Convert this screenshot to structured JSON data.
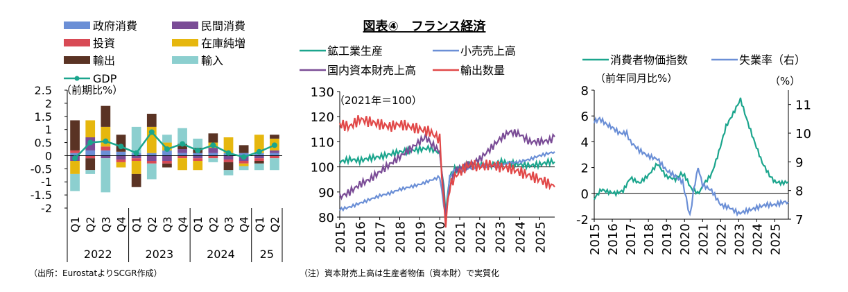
{
  "title": "図表④　フランス経済",
  "source_note": "（出所：EurostatよりSCGR作成）",
  "note": "（注）資本財売上高は生産者物価（資本財）で実質化",
  "chart_data": [
    {
      "type": "bar",
      "stacked": true,
      "unit_label": "（前期比%）",
      "categories": [
        "Q1",
        "Q2",
        "Q3",
        "Q4",
        "Q1",
        "Q2",
        "Q3",
        "Q4",
        "Q1",
        "Q2",
        "Q3",
        "Q4",
        "Q1",
        "Q2"
      ],
      "year_groups": [
        {
          "label": "2022",
          "count": 4
        },
        {
          "label": "2023",
          "count": 4
        },
        {
          "label": "2024",
          "count": 4
        },
        {
          "label": "25",
          "count": 2
        }
      ],
      "ylim": [
        -2,
        2.5
      ],
      "yticks": [
        "2.5",
        "2",
        "1.5",
        "1",
        "0.5",
        "0",
        "-0.5",
        "-1",
        "-1.5",
        "-2"
      ],
      "series": [
        {
          "name": "政府消費",
          "color": "#6b8fd6",
          "values": [
            0.1,
            0.2,
            0.2,
            0.15,
            0.1,
            0.1,
            0.2,
            0.1,
            0.1,
            0.1,
            0.1,
            0.1,
            0.1,
            0.1
          ]
        },
        {
          "name": "民間消費",
          "color": "#7a4c96",
          "values": [
            -0.2,
            0.5,
            -0.1,
            -0.15,
            -0.1,
            -0.2,
            -0.2,
            0.15,
            -0.1,
            0.2,
            -0.15,
            -0.2,
            -0.1,
            0.1
          ]
        },
        {
          "name": "投資",
          "color": "#d84a55",
          "values": [
            0.1,
            -0.1,
            0.15,
            -0.1,
            -0.1,
            -0.1,
            -0.1,
            -0.1,
            -0.1,
            -0.1,
            -0.1,
            -0.1,
            -0.1,
            -0.1
          ]
        },
        {
          "name": "在庫純増",
          "color": "#e6b70e",
          "values": [
            -0.5,
            0.65,
            0.75,
            -0.2,
            -0.5,
            1.0,
            0.3,
            -0.45,
            -0.35,
            0.2,
            0.6,
            -0.1,
            0.7,
            0.45
          ]
        },
        {
          "name": "輸出",
          "color": "#5a3324",
          "values": [
            1.15,
            -0.45,
            0.8,
            0.65,
            -0.5,
            0.5,
            -0.15,
            0.2,
            0.2,
            0.35,
            -0.3,
            0.3,
            -0.1,
            0.15
          ]
        },
        {
          "name": "輸入",
          "color": "#8ccfcf",
          "values": [
            -0.65,
            -0.15,
            -1.3,
            0.0,
            1.0,
            -0.6,
            0.3,
            0.6,
            0.35,
            -0.15,
            -0.2,
            -0.15,
            -0.25,
            -0.45
          ]
        }
      ],
      "gdp": {
        "name": "GDP",
        "color": "#1ba58d",
        "values": [
          -0.1,
          0.5,
          0.55,
          0.35,
          0.1,
          0.9,
          0.25,
          0.45,
          0.2,
          0.4,
          0.1,
          -0.05,
          0.15,
          0.4
        ]
      }
    },
    {
      "type": "line",
      "unit_label": "（2021年＝100）",
      "xlim": [
        2015,
        2025.75
      ],
      "xticks": [
        "2015",
        "2016",
        "2017",
        "2018",
        "2019",
        "2020",
        "2021",
        "2022",
        "2023",
        "2024",
        "2025"
      ],
      "ylim": [
        80,
        130
      ],
      "yticks": [
        "130",
        "120",
        "110",
        "100",
        "90",
        "80"
      ],
      "series": [
        {
          "name": "鉱工業生産",
          "color": "#1ba58d",
          "points": [
            [
              2015,
              102
            ],
            [
              2015.5,
              103
            ],
            [
              2016,
              102.5
            ],
            [
              2016.5,
              103.5
            ],
            [
              2017,
              104
            ],
            [
              2017.5,
              105
            ],
            [
              2018,
              106
            ],
            [
              2018.5,
              106.5
            ],
            [
              2019,
              107
            ],
            [
              2019.5,
              107.5
            ],
            [
              2020,
              105.5
            ],
            [
              2020.2,
              92
            ],
            [
              2020.3,
              82
            ],
            [
              2020.5,
              96
            ],
            [
              2020.75,
              99
            ],
            [
              2021,
              99.5
            ],
            [
              2021.5,
              101
            ],
            [
              2022,
              101
            ],
            [
              2022.5,
              100.5
            ],
            [
              2023,
              102
            ],
            [
              2023.5,
              101.5
            ],
            [
              2024,
              101
            ],
            [
              2024.5,
              100.5
            ],
            [
              2025,
              101
            ],
            [
              2025.5,
              102
            ],
            [
              2025.75,
              102
            ]
          ]
        },
        {
          "name": "小売売上高",
          "color": "#6b8fd6",
          "points": [
            [
              2015,
              83
            ],
            [
              2015.5,
              84
            ],
            [
              2016,
              85.5
            ],
            [
              2016.5,
              87
            ],
            [
              2017,
              88.5
            ],
            [
              2017.5,
              89.5
            ],
            [
              2018,
              91
            ],
            [
              2018.5,
              92
            ],
            [
              2019,
              93
            ],
            [
              2019.5,
              94.5
            ],
            [
              2020,
              96
            ],
            [
              2020.2,
              85
            ],
            [
              2020.3,
              80
            ],
            [
              2020.5,
              96
            ],
            [
              2020.75,
              99
            ],
            [
              2021,
              98.5
            ],
            [
              2021.5,
              99.5
            ],
            [
              2022,
              100.5
            ],
            [
              2022.5,
              100.5
            ],
            [
              2023,
              100.5
            ],
            [
              2023.5,
              101.5
            ],
            [
              2024,
              102
            ],
            [
              2024.5,
              103
            ],
            [
              2025,
              104.5
            ],
            [
              2025.5,
              105.5
            ],
            [
              2025.75,
              106
            ]
          ]
        },
        {
          "name": "国内資本財売上高",
          "color": "#7a4c96",
          "points": [
            [
              2015,
              88
            ],
            [
              2015.5,
              90
            ],
            [
              2016,
              93
            ],
            [
              2016.5,
              95
            ],
            [
              2017,
              98
            ],
            [
              2017.5,
              101
            ],
            [
              2018,
              104
            ],
            [
              2018.5,
              107
            ],
            [
              2019,
              110
            ],
            [
              2019.3,
              112
            ],
            [
              2019.6,
              109
            ],
            [
              2020,
              106
            ],
            [
              2020.2,
              90
            ],
            [
              2020.3,
              80
            ],
            [
              2020.5,
              92
            ],
            [
              2020.75,
              98
            ],
            [
              2021,
              99.5
            ],
            [
              2021.5,
              101
            ],
            [
              2022,
              103
            ],
            [
              2022.5,
              107
            ],
            [
              2023,
              111
            ],
            [
              2023.5,
              114
            ],
            [
              2024,
              113
            ],
            [
              2024.5,
              110
            ],
            [
              2025,
              110
            ],
            [
              2025.5,
              110.5
            ],
            [
              2025.75,
              112
            ]
          ]
        },
        {
          "name": "輸出数量",
          "color": "#e14848",
          "points": [
            [
              2015,
              117
            ],
            [
              2015.5,
              116
            ],
            [
              2016,
              119
            ],
            [
              2016.5,
              118
            ],
            [
              2017,
              117
            ],
            [
              2017.5,
              116
            ],
            [
              2018,
              117
            ],
            [
              2018.5,
              116
            ],
            [
              2019,
              115
            ],
            [
              2019.5,
              114
            ],
            [
              2020,
              111
            ],
            [
              2020.2,
              85
            ],
            [
              2020.3,
              78
            ],
            [
              2020.5,
              92
            ],
            [
              2020.75,
              96
            ],
            [
              2021,
              98
            ],
            [
              2021.5,
              101
            ],
            [
              2022,
              100
            ],
            [
              2022.5,
              101
            ],
            [
              2023,
              100
            ],
            [
              2023.5,
              99.5
            ],
            [
              2024,
              98
            ],
            [
              2024.5,
              96.5
            ],
            [
              2025,
              95
            ],
            [
              2025.5,
              93
            ],
            [
              2025.75,
              92
            ]
          ]
        }
      ]
    },
    {
      "type": "line",
      "unit_label": "（前年同月比%）",
      "right_unit_label": "（%）",
      "xlim": [
        2015,
        2025.75
      ],
      "xticks": [
        "2015",
        "2016",
        "2017",
        "2018",
        "2019",
        "2020",
        "2021",
        "2022",
        "2023",
        "2024",
        "2025"
      ],
      "ylim": [
        -2,
        8
      ],
      "yticks": [
        "8",
        "6",
        "4",
        "2",
        "0",
        "-2"
      ],
      "y2lim": [
        7,
        11.5
      ],
      "y2ticks": [
        "11",
        "10",
        "9",
        "8",
        "7"
      ],
      "series": [
        {
          "name": "消費者物価指数",
          "color": "#1ba58d",
          "axis": "left",
          "points": [
            [
              2015,
              -0.4
            ],
            [
              2015.4,
              0.3
            ],
            [
              2015.8,
              0.1
            ],
            [
              2016.2,
              0.0
            ],
            [
              2016.6,
              0.2
            ],
            [
              2017,
              1.2
            ],
            [
              2017.5,
              0.8
            ],
            [
              2018,
              1.4
            ],
            [
              2018.5,
              2.3
            ],
            [
              2019,
              1.3
            ],
            [
              2019.5,
              1.1
            ],
            [
              2019.8,
              1.5
            ],
            [
              2020,
              1.4
            ],
            [
              2020.4,
              0.3
            ],
            [
              2020.8,
              0.0
            ],
            [
              2021,
              0.6
            ],
            [
              2021.5,
              1.5
            ],
            [
              2021.9,
              3.2
            ],
            [
              2022.3,
              5.2
            ],
            [
              2022.7,
              6.2
            ],
            [
              2023.1,
              7.3
            ],
            [
              2023.5,
              5.5
            ],
            [
              2023.9,
              3.9
            ],
            [
              2024.3,
              2.4
            ],
            [
              2024.7,
              1.4
            ],
            [
              2025,
              0.9
            ],
            [
              2025.4,
              0.8
            ],
            [
              2025.75,
              0.9
            ]
          ]
        },
        {
          "name": "失業率（右）",
          "color": "#6b8fd6",
          "axis": "right",
          "points": [
            [
              2015,
              10.4
            ],
            [
              2015.3,
              10.5
            ],
            [
              2015.7,
              10.3
            ],
            [
              2016,
              10.2
            ],
            [
              2016.4,
              10.0
            ],
            [
              2016.8,
              10.0
            ],
            [
              2017,
              9.7
            ],
            [
              2017.5,
              9.4
            ],
            [
              2018,
              9.2
            ],
            [
              2018.5,
              9.1
            ],
            [
              2019,
              8.7
            ],
            [
              2019.5,
              8.5
            ],
            [
              2019.9,
              8.3
            ],
            [
              2020.1,
              7.7
            ],
            [
              2020.3,
              7.1
            ],
            [
              2020.5,
              8.0
            ],
            [
              2020.75,
              8.8
            ],
            [
              2021,
              8.2
            ],
            [
              2021.5,
              8.0
            ],
            [
              2022,
              7.5
            ],
            [
              2022.5,
              7.4
            ],
            [
              2023,
              7.2
            ],
            [
              2023.5,
              7.3
            ],
            [
              2024,
              7.4
            ],
            [
              2024.5,
              7.5
            ],
            [
              2025,
              7.5
            ],
            [
              2025.5,
              7.6
            ],
            [
              2025.75,
              7.6
            ]
          ]
        }
      ]
    }
  ]
}
